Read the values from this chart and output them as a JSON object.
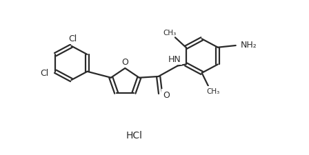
{
  "background_color": "#ffffff",
  "line_color": "#2a2a2a",
  "line_width": 1.6,
  "font_size": 9,
  "figsize": [
    4.48,
    2.26
  ],
  "dpi": 100,
  "hcl_text": "HCl",
  "hcl_x": 5.2,
  "hcl_y": 0.8,
  "xlim": [
    0,
    12
  ],
  "ylim": [
    0,
    6.5
  ]
}
